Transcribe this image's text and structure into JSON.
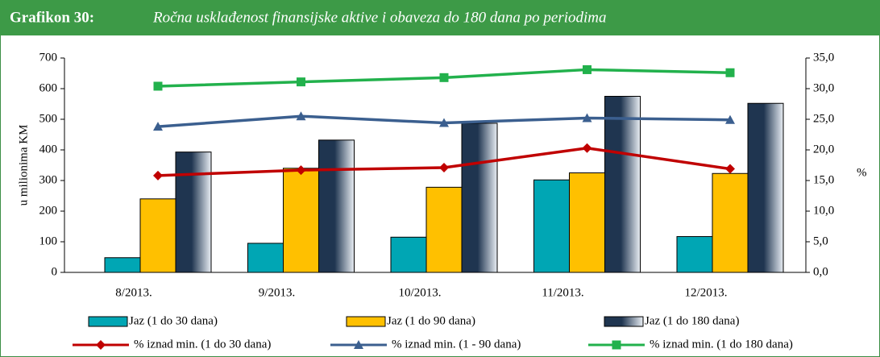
{
  "chart_data": {
    "type": "bar-line",
    "title": "Grafikon 30:",
    "subtitle": "Ročna usklađenost finansijske aktive i obaveza do 180 dana po periodima",
    "y_label": "u milionima KM",
    "y2_label": "%",
    "categories": [
      "8/2013.",
      "9/2013.",
      "10/2013.",
      "11/2013.",
      "12/2013."
    ],
    "series": [
      {
        "name": "Jaz (1 do 30 dana)",
        "type": "bar",
        "color": "#00a6b4",
        "values": [
          48,
          95,
          115,
          302,
          117
        ]
      },
      {
        "name": "Jaz (1 do 90 dana)",
        "type": "bar",
        "color": "#ffc000",
        "values": [
          240,
          340,
          278,
          325,
          323
        ]
      },
      {
        "name": "Jaz (1 do 180 dana)",
        "type": "bar",
        "color": "#1f3550",
        "values": [
          393,
          432,
          487,
          575,
          552
        ]
      },
      {
        "name": "% iznad min. (1 do 30 dana)",
        "type": "line",
        "axis": "y2",
        "marker": "diamond",
        "color": "#c00000",
        "values": [
          15.8,
          16.7,
          17.1,
          20.3,
          16.9
        ]
      },
      {
        "name": "% iznad min. (1 - 90 dana)",
        "type": "line",
        "axis": "y2",
        "marker": "triangle",
        "color": "#3b5f8f",
        "values": [
          23.8,
          25.5,
          24.4,
          25.2,
          24.9
        ]
      },
      {
        "name": "% iznad min. (1 do 180 dana)",
        "type": "line",
        "axis": "y2",
        "marker": "square",
        "color": "#22b14c",
        "values": [
          30.4,
          31.1,
          31.8,
          33.1,
          32.6
        ]
      }
    ],
    "ylim": [
      0,
      700
    ],
    "yticks": [
      0,
      100,
      200,
      300,
      400,
      500,
      600,
      700
    ],
    "y2lim": [
      0,
      35
    ],
    "y2ticks": [
      {
        "value": 0,
        "label": "0,0"
      },
      {
        "value": 5,
        "label": "5,0"
      },
      {
        "value": 10,
        "label": "10,0"
      },
      {
        "value": 15,
        "label": "15,0"
      },
      {
        "value": 20,
        "label": "20,0"
      },
      {
        "value": 25,
        "label": "25,0"
      },
      {
        "value": 30,
        "label": "30,0"
      },
      {
        "value": 35,
        "label": "35,0"
      }
    ],
    "grid": false,
    "legend": "bottom"
  }
}
